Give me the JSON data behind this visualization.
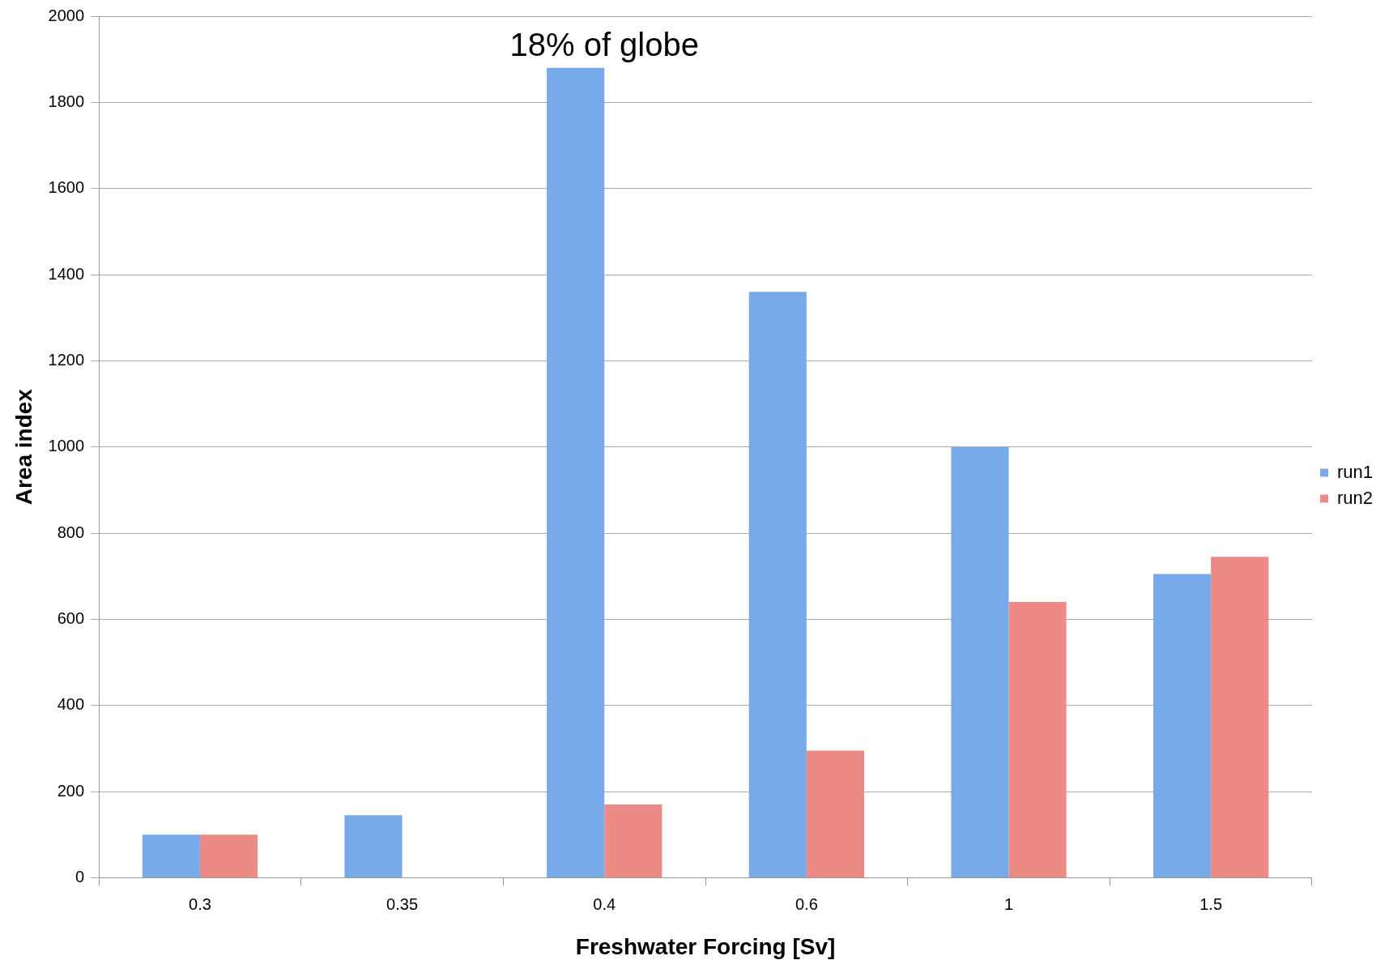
{
  "chart_data": {
    "type": "bar",
    "xlabel": "Freshwater Forcing [Sv]",
    "ylabel": "Area index",
    "categories": [
      "0.3",
      "0.35",
      "0.4",
      "0.6",
      "1",
      "1.5"
    ],
    "series": [
      {
        "name": "run1",
        "color": "#78aaea",
        "values": [
          100,
          145,
          1880,
          1360,
          1000,
          705
        ]
      },
      {
        "name": "run2",
        "color": "#ec8a86",
        "values": [
          100,
          null,
          170,
          295,
          640,
          745
        ]
      }
    ],
    "ylim": [
      0,
      2000
    ],
    "yticks": [
      0,
      200,
      400,
      600,
      800,
      1000,
      1200,
      1400,
      1600,
      1800,
      2000
    ],
    "grid": "y",
    "legend": "right",
    "annotations": [
      {
        "text": "18% of globe",
        "x": "0.4",
        "y": 1880
      }
    ]
  }
}
